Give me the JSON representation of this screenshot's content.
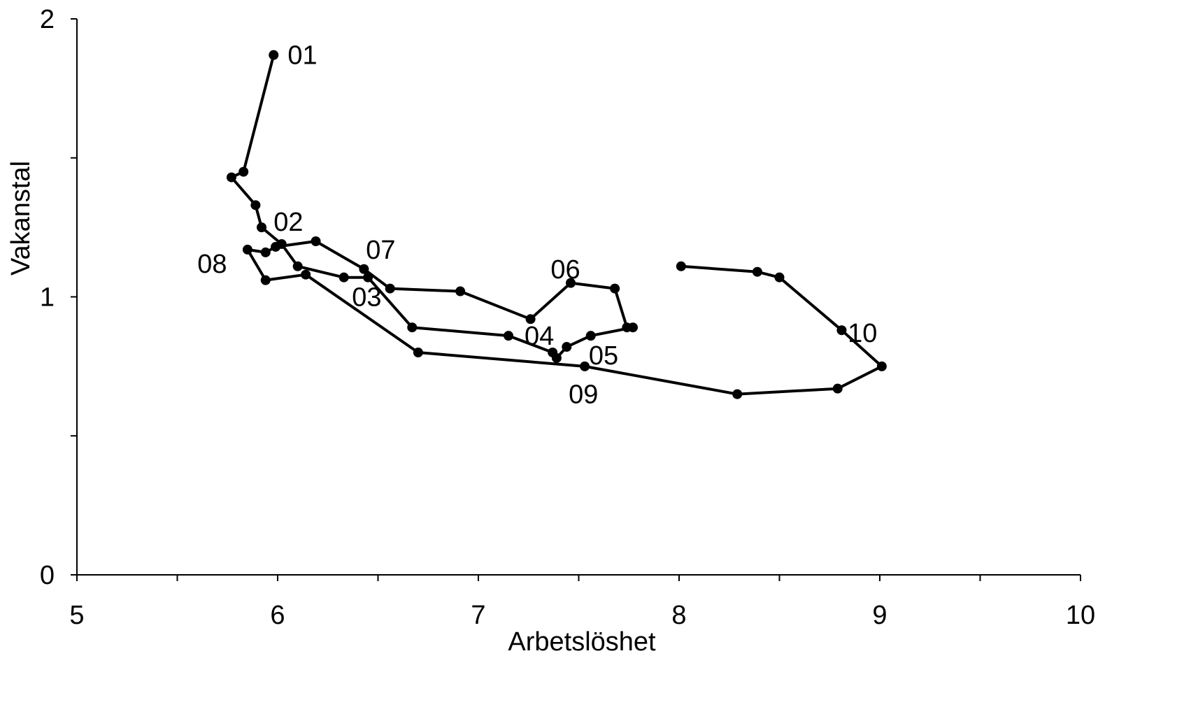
{
  "chart_data": {
    "type": "line",
    "xlabel": "Arbetslöshet",
    "ylabel": "Vakanstal",
    "xlim": [
      5,
      10
    ],
    "ylim": [
      0,
      2
    ],
    "x_ticks": [
      5,
      6,
      7,
      8,
      9,
      10
    ],
    "x_tick_labels": [
      "5",
      "6",
      "7",
      "8",
      "9",
      "10"
    ],
    "y_ticks": [
      0,
      1,
      2
    ],
    "y_tick_labels": [
      "0",
      "1",
      "2"
    ],
    "y_minor_ticks": [
      0.5,
      1.5
    ],
    "x_minor_ticks": [
      5.5,
      6.5,
      7.5,
      8.5,
      9.5
    ],
    "grid": false,
    "legend": "none",
    "series": [
      {
        "points": [
          [
            5.98,
            1.87
          ],
          [
            5.83,
            1.45
          ],
          [
            5.77,
            1.43
          ],
          [
            5.89,
            1.33
          ],
          [
            5.92,
            1.25
          ],
          [
            6.02,
            1.19
          ],
          [
            6.1,
            1.11
          ],
          [
            6.33,
            1.07
          ],
          [
            6.45,
            1.07
          ],
          [
            6.67,
            0.89
          ],
          [
            7.15,
            0.86
          ],
          [
            7.37,
            0.8
          ],
          [
            7.39,
            0.78
          ],
          [
            7.44,
            0.82
          ],
          [
            7.56,
            0.86
          ],
          [
            7.77,
            0.89
          ],
          [
            7.74,
            0.89
          ],
          [
            7.68,
            1.03
          ],
          [
            7.46,
            1.05
          ],
          [
            7.26,
            0.92
          ],
          [
            6.91,
            1.02
          ],
          [
            6.56,
            1.03
          ],
          [
            6.43,
            1.1
          ],
          [
            6.19,
            1.2
          ],
          [
            5.99,
            1.18
          ],
          [
            5.94,
            1.16
          ],
          [
            5.85,
            1.17
          ],
          [
            5.94,
            1.06
          ],
          [
            6.14,
            1.08
          ],
          [
            6.7,
            0.8
          ],
          [
            7.53,
            0.75
          ],
          [
            8.29,
            0.65
          ],
          [
            8.79,
            0.67
          ],
          [
            9.01,
            0.75
          ],
          [
            8.81,
            0.88
          ],
          [
            8.5,
            1.07
          ],
          [
            8.39,
            1.09
          ],
          [
            8.01,
            1.11
          ]
        ]
      }
    ],
    "annotations": [
      {
        "text": "01",
        "x": 6.05,
        "y": 1.87
      },
      {
        "text": "02",
        "x": 5.98,
        "y": 1.27
      },
      {
        "text": "03",
        "x": 6.37,
        "y": 1.0
      },
      {
        "text": "04",
        "x": 7.23,
        "y": 0.86
      },
      {
        "text": "05",
        "x": 7.55,
        "y": 0.79
      },
      {
        "text": "06",
        "x": 7.36,
        "y": 1.1
      },
      {
        "text": "07",
        "x": 6.44,
        "y": 1.17
      },
      {
        "text": "08",
        "x": 5.6,
        "y": 1.12
      },
      {
        "text": "09",
        "x": 7.45,
        "y": 0.65
      },
      {
        "text": "10",
        "x": 8.84,
        "y": 0.87
      }
    ]
  }
}
